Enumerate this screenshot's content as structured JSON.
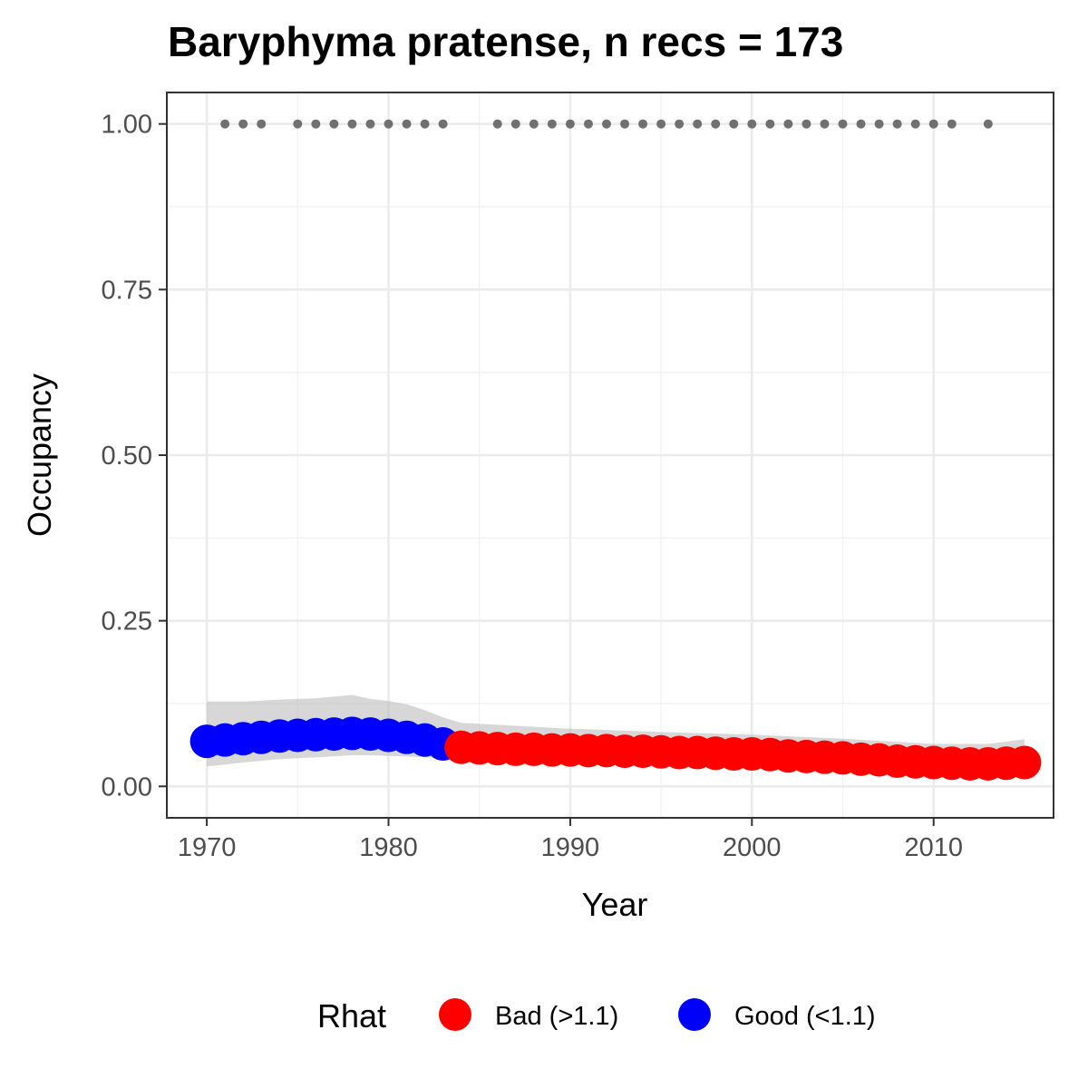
{
  "chart_data": {
    "type": "scatter",
    "title": "Baryphyma pratense, n recs = 173",
    "xlabel": "Year",
    "ylabel": "Occupancy",
    "xlim": [
      1967.8,
      2016.6
    ],
    "ylim": [
      -0.0475,
      1.0475
    ],
    "x_ticks": [
      1970,
      1980,
      1990,
      2000,
      2010
    ],
    "y_ticks": [
      0.0,
      0.25,
      0.5,
      0.75,
      1.0
    ],
    "x_tick_labels": [
      "1970",
      "1980",
      "1990",
      "2000",
      "2010"
    ],
    "y_tick_labels": [
      "0.00",
      "0.25",
      "0.50",
      "0.75",
      "1.00"
    ],
    "grid": true,
    "legend": {
      "title": "Rhat",
      "placement": "bottom",
      "entries": [
        {
          "label": "Bad (>1.1)",
          "color": "#FF0000"
        },
        {
          "label": "Good (<1.1)",
          "color": "#0000FF"
        }
      ]
    },
    "record_years": {
      "y": 1.0,
      "color": "#707070",
      "x": [
        1971,
        1972,
        1973,
        1975,
        1976,
        1977,
        1978,
        1979,
        1980,
        1981,
        1982,
        1983,
        1986,
        1987,
        1988,
        1989,
        1990,
        1991,
        1992,
        1993,
        1994,
        1995,
        1996,
        1997,
        1998,
        1999,
        2000,
        2001,
        2002,
        2003,
        2004,
        2005,
        2006,
        2007,
        2008,
        2009,
        2010,
        2011,
        2013
      ]
    },
    "series": [
      {
        "name": "Good (<1.1)",
        "color": "#0000FF",
        "x": [
          1970,
          1971,
          1972,
          1973,
          1974,
          1975,
          1976,
          1977,
          1978,
          1979,
          1980,
          1981,
          1982,
          1983
        ],
        "y": [
          0.068,
          0.07,
          0.072,
          0.074,
          0.076,
          0.077,
          0.078,
          0.079,
          0.08,
          0.079,
          0.077,
          0.074,
          0.07,
          0.064
        ]
      },
      {
        "name": "Bad (>1.1)",
        "color": "#FF0000",
        "x": [
          1984,
          1985,
          1986,
          1987,
          1988,
          1989,
          1990,
          1991,
          1992,
          1993,
          1994,
          1995,
          1996,
          1997,
          1998,
          1999,
          2000,
          2001,
          2002,
          2003,
          2004,
          2005,
          2006,
          2007,
          2008,
          2009,
          2010,
          2011,
          2012,
          2013,
          2014,
          2015
        ],
        "y": [
          0.059,
          0.058,
          0.057,
          0.056,
          0.056,
          0.055,
          0.055,
          0.054,
          0.054,
          0.053,
          0.053,
          0.052,
          0.051,
          0.051,
          0.05,
          0.049,
          0.049,
          0.048,
          0.046,
          0.045,
          0.044,
          0.043,
          0.041,
          0.04,
          0.038,
          0.037,
          0.036,
          0.035,
          0.034,
          0.034,
          0.035,
          0.036
        ]
      }
    ],
    "ribbon": {
      "color": "#BDBDBD",
      "x": [
        1970,
        1972,
        1974,
        1976,
        1978,
        1979,
        1980,
        1981,
        1982,
        1983,
        1984,
        1986,
        1990,
        1995,
        2000,
        2005,
        2010,
        2013,
        2015
      ],
      "lower": [
        0.03,
        0.036,
        0.041,
        0.044,
        0.047,
        0.047,
        0.046,
        0.045,
        0.044,
        0.042,
        0.041,
        0.04,
        0.036,
        0.033,
        0.029,
        0.025,
        0.02,
        0.02,
        0.021
      ],
      "upper": [
        0.128,
        0.128,
        0.131,
        0.133,
        0.138,
        0.132,
        0.129,
        0.124,
        0.115,
        0.104,
        0.096,
        0.093,
        0.087,
        0.082,
        0.078,
        0.072,
        0.064,
        0.064,
        0.071
      ]
    }
  }
}
